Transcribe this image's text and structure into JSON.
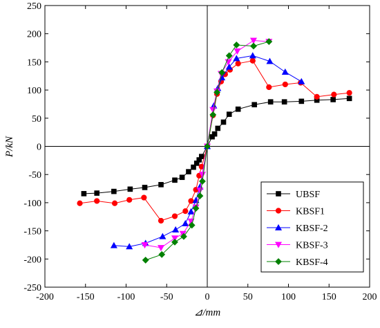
{
  "chart_data": {
    "type": "line",
    "title": "",
    "xlabel": "⊿/mm",
    "ylabel": "P/kN",
    "xlim": [
      -200,
      200
    ],
    "ylim": [
      -250,
      250
    ],
    "x_ticks": [
      -200,
      -150,
      -100,
      -50,
      0,
      50,
      100,
      150,
      200
    ],
    "y_ticks": [
      -250,
      -200,
      -150,
      -100,
      -50,
      0,
      50,
      100,
      150,
      200,
      250
    ],
    "grid": false,
    "legend_position": "bottom-right",
    "series": [
      {
        "name": "UBSF",
        "color": "#000000",
        "marker": "square",
        "points": [
          [
            -152,
            -84
          ],
          [
            -136,
            -83
          ],
          [
            -115,
            -80
          ],
          [
            -95,
            -76
          ],
          [
            -77,
            -73
          ],
          [
            -57,
            -68
          ],
          [
            -40,
            -60
          ],
          [
            -31,
            -55
          ],
          [
            -23,
            -45
          ],
          [
            -17,
            -37
          ],
          [
            -13,
            -30
          ],
          [
            -10,
            -24
          ],
          [
            -7,
            -18
          ],
          [
            0,
            0
          ],
          [
            6,
            17
          ],
          [
            9,
            22
          ],
          [
            13,
            32
          ],
          [
            20,
            43
          ],
          [
            27,
            57
          ],
          [
            38,
            66
          ],
          [
            58,
            74
          ],
          [
            78,
            79
          ],
          [
            95,
            79
          ],
          [
            116,
            80
          ],
          [
            135,
            82
          ],
          [
            155,
            83
          ],
          [
            175,
            85
          ]
        ]
      },
      {
        "name": "KBSF1",
        "color": "#ff0000",
        "marker": "circle",
        "points": [
          [
            -157,
            -101
          ],
          [
            -136,
            -97
          ],
          [
            -114,
            -101
          ],
          [
            -96,
            -95
          ],
          [
            -78,
            -91
          ],
          [
            -57,
            -132
          ],
          [
            -40,
            -124
          ],
          [
            -27,
            -115
          ],
          [
            -20,
            -97
          ],
          [
            -14,
            -77
          ],
          [
            -10,
            -52
          ],
          [
            -7,
            -36
          ],
          [
            0,
            0
          ],
          [
            7,
            55
          ],
          [
            12,
            93
          ],
          [
            17,
            115
          ],
          [
            22,
            128
          ],
          [
            28,
            136
          ],
          [
            38,
            147
          ],
          [
            56,
            152
          ],
          [
            76,
            105
          ],
          [
            96,
            110
          ],
          [
            115,
            113
          ],
          [
            135,
            88
          ],
          [
            156,
            92
          ],
          [
            175,
            95
          ]
        ]
      },
      {
        "name": "KBSF-2",
        "color": "#0000ff",
        "marker": "triangle-up",
        "points": [
          [
            -115,
            -176
          ],
          [
            -96,
            -178
          ],
          [
            -76,
            -172
          ],
          [
            -55,
            -160
          ],
          [
            -39,
            -148
          ],
          [
            -27,
            -137
          ],
          [
            -20,
            -116
          ],
          [
            -14,
            -96
          ],
          [
            -9,
            -72
          ],
          [
            0,
            0
          ],
          [
            8,
            72
          ],
          [
            13,
            103
          ],
          [
            18,
            122
          ],
          [
            27,
            141
          ],
          [
            36,
            156
          ],
          [
            56,
            161
          ],
          [
            77,
            151
          ],
          [
            96,
            132
          ],
          [
            116,
            115
          ]
        ]
      },
      {
        "name": "KBSF-3",
        "color": "#ff00ff",
        "marker": "triangle-down",
        "points": [
          [
            -77,
            -175
          ],
          [
            -57,
            -180
          ],
          [
            -40,
            -163
          ],
          [
            -30,
            -155
          ],
          [
            -20,
            -133
          ],
          [
            -14,
            -108
          ],
          [
            -9,
            -78
          ],
          [
            -6,
            -50
          ],
          [
            0,
            0
          ],
          [
            7,
            65
          ],
          [
            12,
            98
          ],
          [
            17,
            129
          ],
          [
            26,
            150
          ],
          [
            37,
            169
          ],
          [
            57,
            188
          ],
          [
            76,
            186
          ]
        ]
      },
      {
        "name": "KBSF-4",
        "color": "#008000",
        "marker": "diamond",
        "points": [
          [
            -76,
            -202
          ],
          [
            -56,
            -192
          ],
          [
            -40,
            -170
          ],
          [
            -29,
            -160
          ],
          [
            -19,
            -140
          ],
          [
            -14,
            -110
          ],
          [
            -9,
            -88
          ],
          [
            -6,
            -62
          ],
          [
            0,
            0
          ],
          [
            7,
            56
          ],
          [
            12,
            96
          ],
          [
            18,
            131
          ],
          [
            27,
            161
          ],
          [
            36,
            180
          ],
          [
            57,
            178
          ],
          [
            76,
            186
          ]
        ]
      }
    ]
  }
}
